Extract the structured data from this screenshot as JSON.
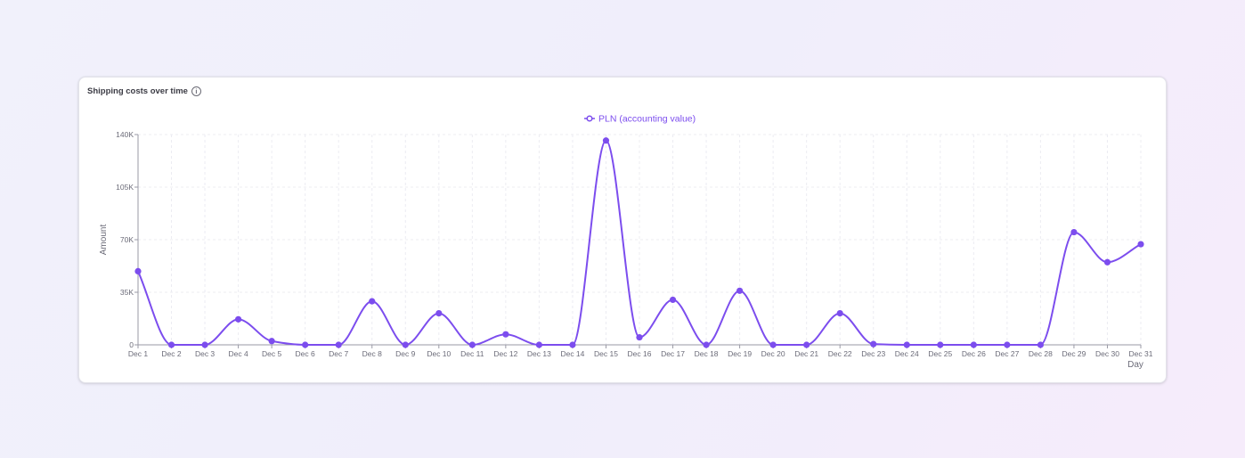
{
  "card": {
    "title": "Shipping costs over time",
    "info_icon": "info-icon"
  },
  "chart_data": {
    "type": "line",
    "title": "Shipping costs over time",
    "xlabel": "Day",
    "ylabel": "Amount",
    "ylim": [
      0,
      140000
    ],
    "y_ticks": [
      0,
      35000,
      70000,
      105000,
      140000
    ],
    "y_tick_labels": [
      "0",
      "35K",
      "70K",
      "105K",
      "140K"
    ],
    "grid": true,
    "legend_position": "top-center",
    "categories": [
      "Dec 1",
      "Dec 2",
      "Dec 3",
      "Dec 4",
      "Dec 5",
      "Dec 6",
      "Dec 7",
      "Dec 8",
      "Dec 9",
      "Dec 10",
      "Dec 11",
      "Dec 12",
      "Dec 13",
      "Dec 14",
      "Dec 15",
      "Dec 16",
      "Dec 17",
      "Dec 18",
      "Dec 19",
      "Dec 20",
      "Dec 21",
      "Dec 22",
      "Dec 23",
      "Dec 24",
      "Dec 25",
      "Dec 26",
      "Dec 27",
      "Dec 28",
      "Dec 29",
      "Dec 30",
      "Dec 31"
    ],
    "series": [
      {
        "name": "PLN (accounting value)",
        "color": "#7c4dee",
        "values": [
          49000,
          0,
          0,
          17000,
          2500,
          0,
          0,
          29000,
          0,
          21000,
          0,
          7000,
          0,
          0,
          136000,
          5000,
          30000,
          0,
          36000,
          0,
          0,
          21000,
          500,
          0,
          0,
          0,
          0,
          0,
          75000,
          55000,
          67000
        ]
      }
    ]
  },
  "colors": {
    "accent": "#7c4dee",
    "grid": "#ececf2",
    "axis": "#9a9aa6",
    "tick_text": "#6b6b78"
  }
}
